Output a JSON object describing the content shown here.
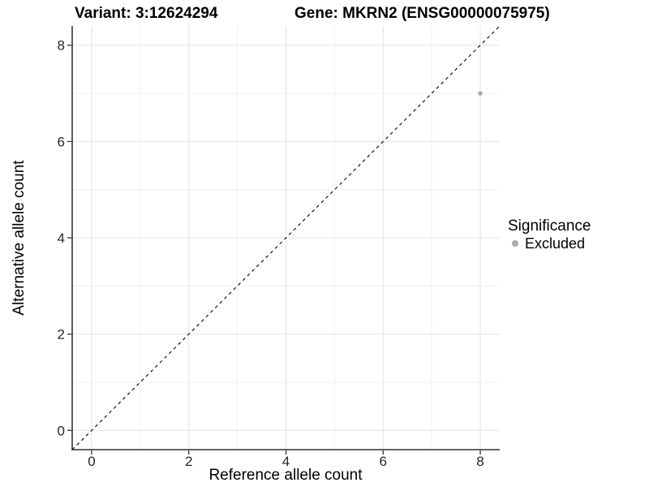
{
  "titles": {
    "variant": "Variant: 3:12624294",
    "gene": "Gene: MKRN2 (ENSG00000075975)"
  },
  "chart_data": {
    "type": "scatter",
    "title_left": "Variant: 3:12624294",
    "title_right": "Gene: MKRN2 (ENSG00000075975)",
    "xlabel": "Reference allele count",
    "ylabel": "Alternative allele count",
    "xlim": [
      -0.4,
      8.4
    ],
    "ylim": [
      -0.4,
      8.4
    ],
    "xticks": [
      0,
      2,
      4,
      6,
      8
    ],
    "yticks": [
      0,
      2,
      4,
      6,
      8
    ],
    "xtick_labels": [
      "0",
      "2",
      "4",
      "6",
      "8"
    ],
    "ytick_labels": [
      "0",
      "2",
      "4",
      "6",
      "8"
    ],
    "minor_ticks": [
      1,
      3,
      5,
      7
    ],
    "grid": "major+minor",
    "reference_line": {
      "kind": "identity",
      "slope": 1,
      "intercept": 0,
      "style": "dashed"
    },
    "series": [
      {
        "name": "Excluded",
        "points": [
          {
            "x": 8,
            "y": 7
          }
        ]
      }
    ],
    "legend": {
      "title": "Significance",
      "position": "right",
      "items": [
        {
          "label": "Excluded"
        }
      ]
    }
  },
  "colors": {
    "point": "#ababab",
    "legend_dot": "#ababab",
    "grid_major": "#e3e3e3",
    "grid_minor": "#f0f0f0",
    "axis_line": "#333333",
    "tick_mark": "#333333",
    "tick_text": "#262626",
    "reference_line": "#000000",
    "background": "#ffffff"
  }
}
